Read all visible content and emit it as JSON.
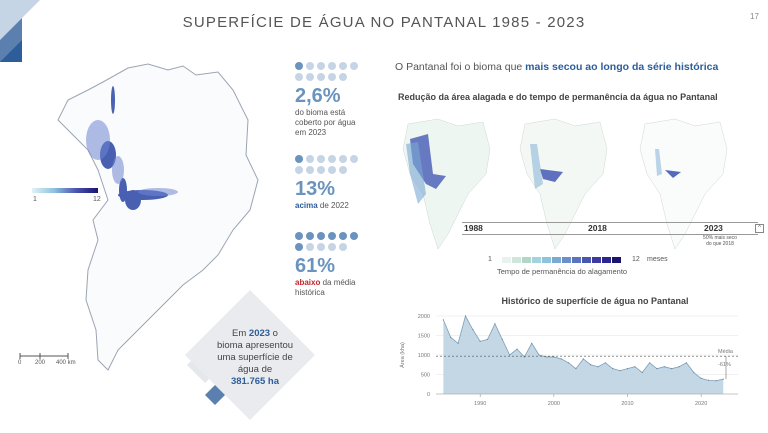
{
  "title": "SUPERFÍCIE DE ÁGUA NO PANTANAL 1985 - 2023",
  "page_number": "17",
  "map": {
    "legend_min": "1",
    "legend_max": "12",
    "scale_labels": [
      "0",
      "200",
      "400 km"
    ]
  },
  "stats": [
    {
      "value": "2,6%",
      "text_line1": "do bioma está",
      "text_line2": "coberto por água",
      "text_line3": "em 2023"
    },
    {
      "value": "13%",
      "emph": "acima",
      "rest": " de 2022"
    },
    {
      "value": "61%",
      "emph": "abaixo",
      "rest": " da média",
      "text_line2": "histórica"
    }
  ],
  "box": {
    "line1_pre": "Em ",
    "year": "2023",
    "line1_post": " o",
    "line2": "bioma apresentou",
    "line3": "uma superfície de",
    "line4": "água de",
    "value": "381.765 ha"
  },
  "subtitle_pre": "O Pantanal foi o bioma que ",
  "subtitle_bold": "mais secou ao longo da série histórica",
  "reduction": {
    "heading": "Redução da área alagada e do tempo de permanência da água no Pantanal",
    "years": [
      "1988",
      "2018",
      "2023"
    ],
    "note_line1": "50% mais seco",
    "note_line2": "do que 2018",
    "legend_min": "1",
    "legend_max": "12",
    "legend_unit": "meses",
    "legend_caption": "Tempo de permanência do alagamento",
    "legend_colors": [
      "#e8f3ee",
      "#cfe6da",
      "#b3d7c6",
      "#a3d3de",
      "#8ec3dd",
      "#7aa9d4",
      "#6a8fcb",
      "#5a72bf",
      "#4a55b0",
      "#3a3aa0",
      "#2a2590",
      "#1a1470"
    ]
  },
  "chart_data": {
    "type": "area",
    "title": "Histórico de superfície de água no Pantanal",
    "ylabel": "Área (kha)",
    "xlabel": "",
    "ylim": [
      0,
      2000
    ],
    "yticks": [
      0,
      500,
      1000,
      1500,
      2000
    ],
    "xticks": [
      1990,
      2000,
      2010,
      2020
    ],
    "mean_label": "Média",
    "mean_value": 970,
    "mean_delta_label": "-61%",
    "x": [
      1985,
      1986,
      1987,
      1988,
      1989,
      1990,
      1991,
      1992,
      1993,
      1994,
      1995,
      1996,
      1997,
      1998,
      1999,
      2000,
      2001,
      2002,
      2003,
      2004,
      2005,
      2006,
      2007,
      2008,
      2009,
      2010,
      2011,
      2012,
      2013,
      2014,
      2015,
      2016,
      2017,
      2018,
      2019,
      2020,
      2021,
      2022,
      2023
    ],
    "values": [
      1900,
      1450,
      1300,
      2000,
      1650,
      1350,
      1400,
      1800,
      1400,
      1000,
      1150,
      950,
      1300,
      1000,
      950,
      950,
      900,
      800,
      650,
      900,
      750,
      700,
      800,
      650,
      600,
      650,
      700,
      550,
      800,
      650,
      700,
      650,
      700,
      800,
      550,
      400,
      350,
      340,
      380
    ]
  }
}
